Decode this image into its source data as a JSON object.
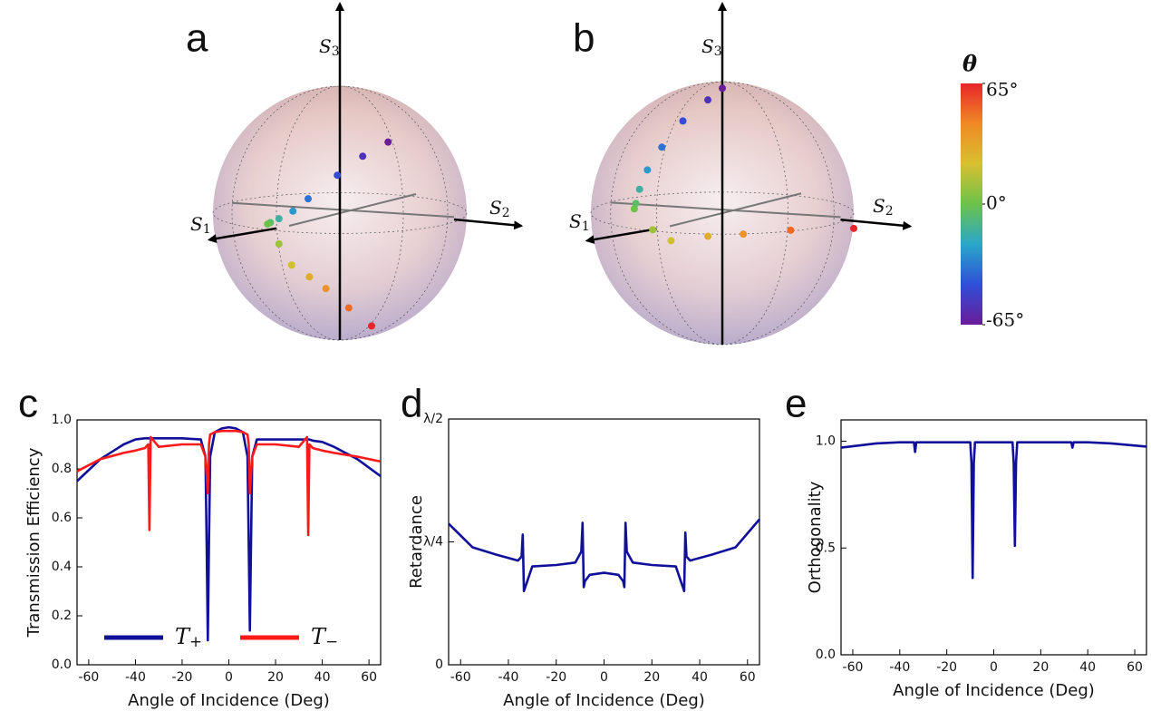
{
  "chart_data": [
    {
      "type": "sphere",
      "panel_label": "a",
      "axis_labels": [
        "S1",
        "S2",
        "S3"
      ],
      "theta": [
        -65,
        -55,
        -45,
        -35,
        -25,
        -15,
        -5,
        0,
        10,
        20,
        30,
        40,
        50,
        65
      ],
      "s1": [
        -0.3,
        -0.05,
        0.2,
        0.5,
        0.65,
        0.8,
        0.88,
        0.9,
        0.85,
        0.8,
        0.7,
        0.6,
        0.45,
        0.3
      ],
      "s2": [
        0.2,
        0.15,
        0.1,
        0.05,
        0.02,
        0,
        -0.02,
        -0.03,
        0.03,
        0.1,
        0.18,
        0.25,
        0.34,
        0.43
      ],
      "s3": [
        0.55,
        0.47,
        0.35,
        0.2,
        0.12,
        0.08,
        0.06,
        0.05,
        -0.12,
        -0.3,
        -0.41,
        -0.52,
        -0.7,
        -0.87
      ]
    },
    {
      "type": "sphere",
      "panel_label": "b",
      "axis_labels": [
        "S1",
        "S2",
        "S3"
      ],
      "theta": [
        -65,
        -55,
        -45,
        -35,
        -25,
        -15,
        -5,
        0,
        10,
        20,
        30,
        40,
        50,
        65
      ],
      "s1": [
        0,
        0.1,
        0.3,
        0.5,
        0.7,
        0.85,
        0.93,
        0.95,
        0.85,
        0.75,
        0.6,
        0.5,
        0.3,
        0
      ],
      "s2": [
        0,
        -0.05,
        -0.12,
        -0.16,
        -0.15,
        -0.12,
        -0.1,
        -0.1,
        -0.02,
        0.06,
        0.25,
        0.46,
        0.7,
        1
      ],
      "s3": [
        1,
        0.92,
        0.78,
        0.6,
        0.45,
        0.32,
        0.22,
        0.18,
        0,
        -0.1,
        -0.08,
        -0.07,
        -0.06,
        -0.08
      ]
    },
    {
      "type": "colorbar",
      "title": "θ",
      "lim": [
        -65,
        65
      ],
      "ticks": [
        {
          "value": 65,
          "label": "65°"
        },
        {
          "value": 0,
          "label": "0°"
        },
        {
          "value": -65,
          "label": "-65°"
        }
      ],
      "colors": [
        "#6a1b9a",
        "#2f4fd8",
        "#2aa7c9",
        "#6cc24a",
        "#d8c030",
        "#f08a24",
        "#e8262a"
      ]
    },
    {
      "type": "line",
      "panel_label": "c",
      "xlabel": "Angle of Incidence (Deg)",
      "ylabel": "Transmission Efficiency",
      "x": [
        -65,
        -55,
        -45,
        -40,
        -36,
        -34.5,
        -34,
        -33.5,
        -30,
        -20,
        -12,
        -10,
        -9.5,
        -9,
        -8.5,
        -8,
        -6,
        -3,
        0,
        3,
        6,
        8,
        8.5,
        9,
        9.5,
        10,
        12,
        20,
        30,
        33.5,
        34,
        34.5,
        36,
        40,
        45,
        55,
        65
      ],
      "series": [
        {
          "name": "T+",
          "color": "#10109a",
          "values": [
            0.75,
            0.84,
            0.9,
            0.92,
            0.925,
            0.925,
            0.925,
            0.925,
            0.925,
            0.925,
            0.92,
            0.85,
            0.5,
            0.1,
            0.5,
            0.85,
            0.95,
            0.965,
            0.97,
            0.965,
            0.95,
            0.85,
            0.5,
            0.14,
            0.5,
            0.85,
            0.92,
            0.92,
            0.92,
            0.92,
            0.92,
            0.92,
            0.915,
            0.91,
            0.89,
            0.84,
            0.77
          ]
        },
        {
          "name": "T−",
          "color": "#ff1a1a",
          "values": [
            0.79,
            0.84,
            0.865,
            0.875,
            0.885,
            0.9,
            0.55,
            0.93,
            0.89,
            0.9,
            0.9,
            0.85,
            0.78,
            0.7,
            0.9,
            0.94,
            0.95,
            0.955,
            0.955,
            0.955,
            0.95,
            0.94,
            0.9,
            0.7,
            0.78,
            0.85,
            0.9,
            0.9,
            0.89,
            0.93,
            0.53,
            0.9,
            0.885,
            0.875,
            0.865,
            0.85,
            0.83
          ]
        }
      ],
      "xlim": [
        -65,
        65
      ],
      "xticks": [
        -60,
        -40,
        -20,
        0,
        20,
        40,
        60
      ],
      "ylim": [
        0,
        1
      ],
      "yticks": [
        {
          "value": 0,
          "label": "0.0"
        },
        0.2,
        0.4,
        0.6,
        0.8,
        {
          "value": 1,
          "label": "1.0"
        }
      ]
    },
    {
      "type": "line",
      "panel_label": "d",
      "xlabel": "Angle of Incidence (Deg)",
      "ylabel": "Retardance",
      "x": [
        -65,
        -55,
        -45,
        -36,
        -34.5,
        -34,
        -33.5,
        -30,
        -20,
        -12,
        -9.5,
        -9,
        -8.5,
        -8,
        -6,
        0,
        6,
        8,
        8.5,
        9,
        9.5,
        12,
        20,
        30,
        33.5,
        34,
        34.5,
        36,
        45,
        55,
        65
      ],
      "series": [
        {
          "color": "#10109a",
          "values": [
            0.287,
            0.239,
            0.224,
            0.212,
            0.22,
            0.265,
            0.15,
            0.2,
            0.203,
            0.208,
            0.23,
            0.289,
            0.158,
            0.17,
            0.183,
            0.187,
            0.183,
            0.17,
            0.158,
            0.289,
            0.23,
            0.208,
            0.203,
            0.2,
            0.15,
            0.269,
            0.22,
            0.212,
            0.224,
            0.239,
            0.296
          ]
        }
      ],
      "xlim": [
        -65,
        65
      ],
      "xticks": [
        -60,
        -40,
        -20,
        0,
        20,
        40,
        60
      ],
      "ylim": [
        0,
        0.5
      ],
      "yticks": [
        0,
        {
          "value": 0.25,
          "label": "λ/4"
        },
        {
          "value": 0.5,
          "label": "λ/2"
        }
      ]
    },
    {
      "type": "line",
      "panel_label": "e",
      "xlabel": "Angle of Incidence (Deg)",
      "ylabel": "Orthogonality",
      "x": [
        -65,
        -50,
        -40,
        -34,
        -33.5,
        -33,
        -10,
        -9.5,
        -9,
        -8.5,
        -8,
        8,
        8.5,
        9,
        9.5,
        10,
        33,
        33.5,
        34,
        40,
        50,
        65
      ],
      "series": [
        {
          "color": "#10109a",
          "values": [
            0.97,
            0.99,
            0.995,
            0.995,
            0.95,
            0.995,
            0.995,
            0.9,
            0.36,
            0.9,
            0.995,
            0.995,
            0.9,
            0.51,
            0.9,
            0.995,
            0.995,
            0.97,
            0.995,
            0.995,
            0.99,
            0.975
          ]
        }
      ],
      "xlim": [
        -65,
        65
      ],
      "xticks": [
        -60,
        -40,
        -20,
        0,
        20,
        40,
        60
      ],
      "ylim": [
        0,
        1.1
      ],
      "yticks": [
        {
          "value": 0,
          "label": "0.0"
        },
        0.5,
        {
          "value": 1,
          "label": "1.0"
        }
      ]
    }
  ]
}
